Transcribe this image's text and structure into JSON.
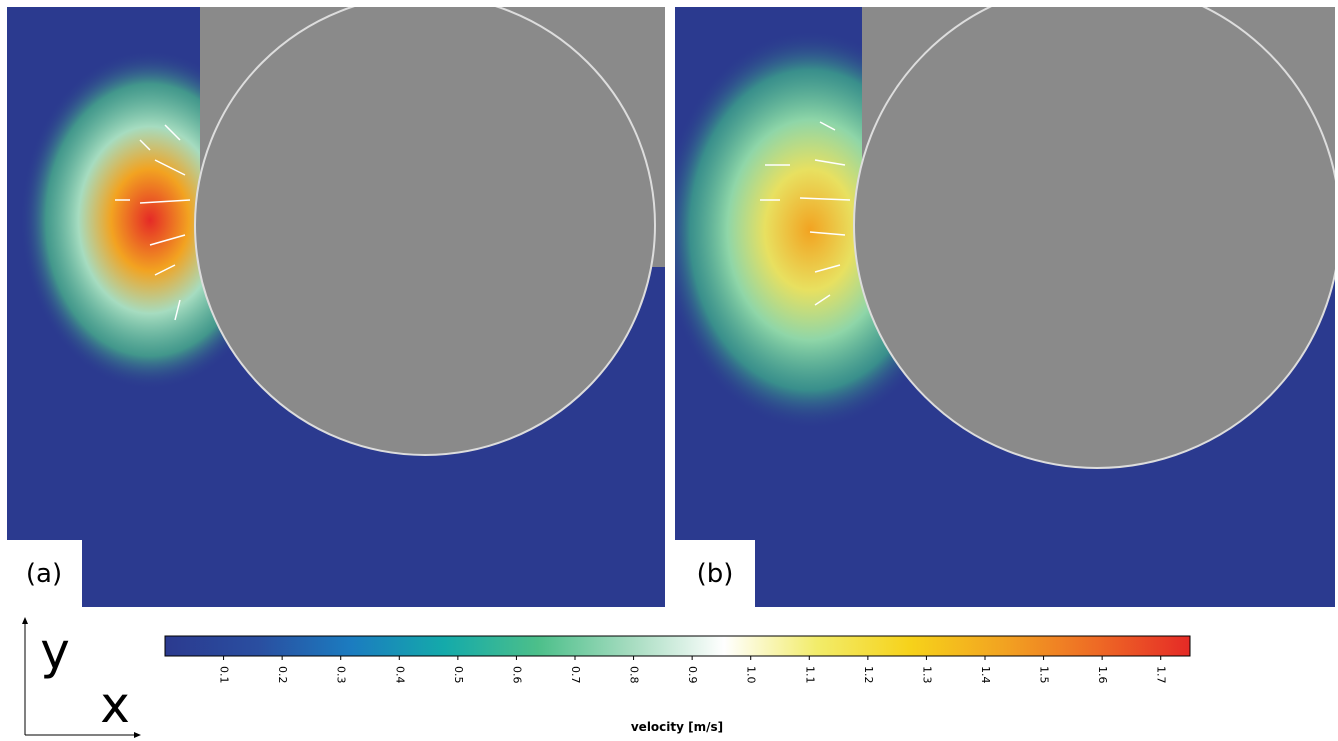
{
  "panels": [
    {
      "label": "(a)"
    },
    {
      "label": "(b)"
    }
  ],
  "axes_indicator": {
    "y": "y",
    "x": "x"
  },
  "colorbar": {
    "label": "velocity [m/s]",
    "lim": [
      0,
      1.75
    ],
    "ticks": [
      0.1,
      0.2,
      0.3,
      0.4,
      0.5,
      0.6,
      0.7,
      0.8,
      0.9,
      {
        "value": 1,
        "label": "1.0"
      },
      1.1,
      1.2,
      1.3,
      1.4,
      1.5,
      1.6,
      1.7
    ],
    "colors": [
      "#2b3a8f",
      "#2a4ea0",
      "#1b7cc0",
      "#14aaaa",
      "#4cbf8a",
      "#a6dcc0",
      "#ffffff",
      "#f2ec6a",
      "#f6d21a",
      "#f2a321",
      "#ee6a25",
      "#e52a26"
    ]
  }
}
